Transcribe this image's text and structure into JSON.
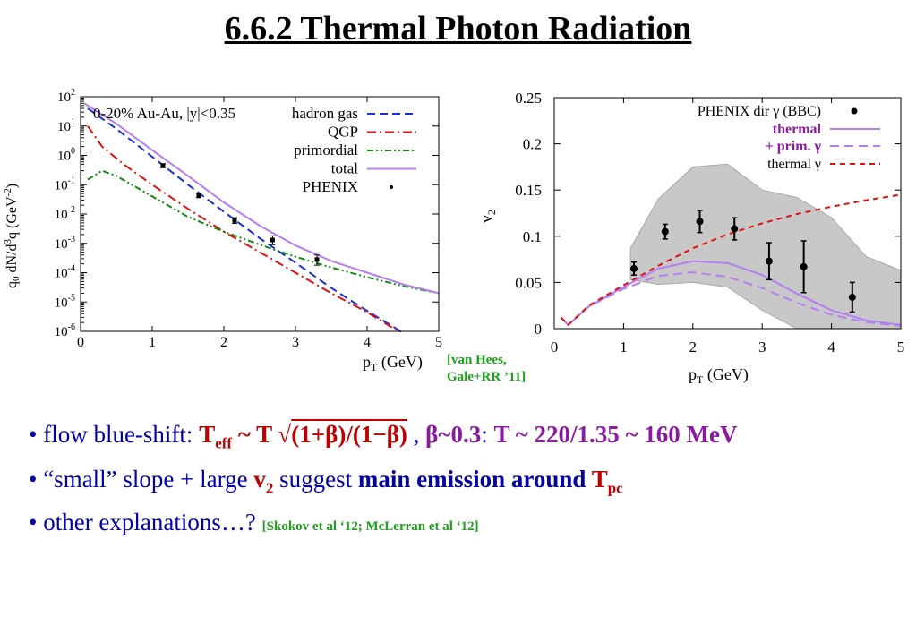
{
  "slide": {
    "title": "6.6.2 Thermal Photon Radiation",
    "citation_left_1": "[van Hees,",
    "citation_left_2": "Gale+RR ’11]",
    "bullet1": {
      "prefix": "• flow blue-shift: ",
      "teff": "T",
      "teff_sub": "eff",
      "tilde_T": " ~ T ",
      "sqrt": "√",
      "radicand": "(1+β)/(1−β)",
      "comma": " ,  ",
      "beta": "β~0.3",
      "colon": ": ",
      "result": "T ~ 220/1.35 ~ 160 MeV"
    },
    "bullet2": {
      "prefix": "• “small” slope + large ",
      "v": "v",
      "v_sub": "2",
      "mid": "  suggest ",
      "main": "main emission around ",
      "tpc": "T",
      "tpc_sub": "pc"
    },
    "bullet3": {
      "prefix": "• other explanations…?  ",
      "refs": "[Skokov et al ‘12;  McLerran et al ‘12]"
    }
  },
  "chart_data": [
    {
      "type": "line",
      "annotation": "0-20% Au-Au, |y|<0.35",
      "xlabel": "pT (GeV)",
      "ylabel": "q0 dN/d3q (GeV-2)",
      "xlim": [
        0,
        5
      ],
      "ylim": [
        1e-06,
        100
      ],
      "yscale": "log",
      "x_ticks": [
        "0",
        "1",
        "2",
        "3",
        "4",
        "5"
      ],
      "y_ticks": [
        "10^2",
        "10^1",
        "10^0",
        "10^-1",
        "10^-2",
        "10^-3",
        "10^-4",
        "10^-5",
        "10^-6"
      ],
      "legend_position": "top-right",
      "series": [
        {
          "name": "hadron gas",
          "style": "dashed",
          "color": "#1a2fd6",
          "x": [
            0.1,
            0.5,
            1.0,
            1.5,
            2.0,
            2.5,
            3.0,
            3.5,
            4.0,
            4.5
          ],
          "y": [
            40,
            8,
            0.9,
            0.1,
            0.012,
            0.0015,
            0.00022,
            3e-05,
            5e-06,
            9e-07
          ]
        },
        {
          "name": "QGP",
          "style": "dash-dot",
          "color": "#e01010",
          "x": [
            0.1,
            0.3,
            0.6,
            1.0,
            1.5,
            2.0,
            2.5,
            3.0,
            3.5,
            4.0,
            4.5
          ],
          "y": [
            10,
            2,
            0.5,
            0.1,
            0.015,
            0.0025,
            0.0005,
            0.0001,
            2e-05,
            4.5e-06,
            8e-07
          ]
        },
        {
          "name": "primordial",
          "style": "dash-dot-dot",
          "color": "#138a13",
          "x": [
            0.1,
            0.3,
            0.5,
            1.0,
            1.5,
            2.0,
            2.5,
            3.0,
            3.5,
            4.0,
            4.5,
            5.0
          ],
          "y": [
            0.15,
            0.3,
            0.2,
            0.04,
            0.008,
            0.0025,
            0.0009,
            0.00035,
            0.00015,
            7e-05,
            3.5e-05,
            2e-05
          ]
        },
        {
          "name": "total",
          "style": "solid",
          "color": "#b47ff0",
          "x": [
            0.05,
            0.5,
            1.0,
            1.5,
            2.0,
            2.5,
            3.0,
            3.5,
            4.0,
            4.5,
            5.0
          ],
          "y": [
            60,
            12,
            1.5,
            0.2,
            0.025,
            0.004,
            0.00085,
            0.00025,
            0.0001,
            4e-05,
            2e-05
          ]
        }
      ],
      "phenix": {
        "name": "PHENIX",
        "x": [
          1.15,
          1.65,
          2.15,
          2.68,
          3.3
        ],
        "y": [
          0.45,
          0.043,
          0.006,
          0.0013,
          0.00028
        ],
        "yerr_lo": [
          0.38,
          0.036,
          0.0048,
          0.0009,
          0.00018
        ],
        "yerr_hi": [
          0.52,
          0.05,
          0.0075,
          0.0018,
          0.0004
        ]
      }
    },
    {
      "type": "line",
      "xlabel": "pT (GeV)",
      "ylabel": "v2",
      "xlim": [
        0,
        5
      ],
      "ylim": [
        0,
        0.25
      ],
      "x_ticks": [
        "0",
        "1",
        "2",
        "3",
        "4",
        "5"
      ],
      "y_ticks": [
        "0",
        "0.05",
        "0.1",
        "0.15",
        "0.2",
        "0.25"
      ],
      "legend_position": "top-right",
      "band": {
        "name": "PHENIX systematic band",
        "color": "#c8c8c8",
        "x": [
          1.1,
          1.5,
          2.0,
          2.5,
          3.0,
          3.5,
          4.0,
          4.5,
          5.0
        ],
        "hi": [
          0.087,
          0.14,
          0.175,
          0.178,
          0.15,
          0.142,
          0.12,
          0.078,
          0.063
        ],
        "lo": [
          0.053,
          0.048,
          0.05,
          0.045,
          0.02,
          0.0,
          0.0,
          0.0,
          0.0
        ]
      },
      "series": [
        {
          "name": "thermal",
          "style": "solid",
          "color": "#b47ff0",
          "x": [
            0.1,
            0.2,
            0.5,
            1.0,
            1.5,
            2.0,
            2.5,
            3.0,
            3.5,
            4.0,
            4.5,
            5.0
          ],
          "y": [
            0.012,
            0.004,
            0.024,
            0.045,
            0.065,
            0.073,
            0.071,
            0.058,
            0.038,
            0.02,
            0.009,
            0.004
          ]
        },
        {
          "name": "+ prim. γ",
          "style": "dashed",
          "color": "#b47ff0",
          "x": [
            0.1,
            0.2,
            0.5,
            1.0,
            1.5,
            2.0,
            2.5,
            3.0,
            3.5,
            4.0,
            4.5,
            5.0
          ],
          "y": [
            0.012,
            0.004,
            0.024,
            0.043,
            0.057,
            0.061,
            0.056,
            0.044,
            0.028,
            0.015,
            0.007,
            0.003
          ]
        },
        {
          "name": "thermal γ",
          "style": "dashed",
          "color": "#e01010",
          "x": [
            0.1,
            0.2,
            0.5,
            1.0,
            1.5,
            2.0,
            2.5,
            3.0,
            3.5,
            4.0,
            4.5,
            5.0
          ],
          "y": [
            0.012,
            0.004,
            0.025,
            0.047,
            0.068,
            0.087,
            0.102,
            0.114,
            0.124,
            0.132,
            0.139,
            0.145
          ]
        }
      ],
      "phenix": {
        "name": "PHENIX dir γ (BBC)",
        "x": [
          1.15,
          1.6,
          2.1,
          2.6,
          3.1,
          3.6,
          4.3
        ],
        "y": [
          0.065,
          0.105,
          0.116,
          0.108,
          0.073,
          0.067,
          0.034
        ],
        "yerr": [
          0.007,
          0.008,
          0.012,
          0.012,
          0.02,
          0.028,
          0.016
        ]
      }
    }
  ]
}
